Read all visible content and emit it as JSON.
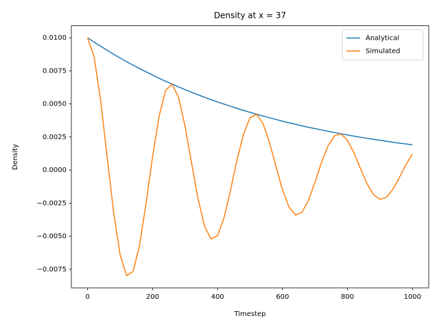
{
  "chart_data": {
    "type": "line",
    "title": "Density at x = 37",
    "x_label": "Timestep",
    "y_label": "Density",
    "x": [
      0,
      20,
      40,
      60,
      80,
      100,
      120,
      140,
      160,
      180,
      200,
      220,
      240,
      260,
      280,
      300,
      320,
      340,
      360,
      380,
      400,
      420,
      440,
      460,
      480,
      500,
      520,
      540,
      560,
      580,
      600,
      620,
      640,
      660,
      680,
      700,
      720,
      740,
      760,
      780,
      800,
      820,
      840,
      860,
      880,
      900,
      920,
      940,
      960,
      980,
      1000
    ],
    "series": [
      {
        "name": "Analytical",
        "color": "#1f77b4",
        "values": [
          0.01,
          0.00967,
          0.00936,
          0.00905,
          0.00876,
          0.00847,
          0.00819,
          0.00793,
          0.00767,
          0.00742,
          0.00718,
          0.00694,
          0.00671,
          0.0065,
          0.00628,
          0.00608,
          0.00588,
          0.00569,
          0.0055,
          0.00532,
          0.00515,
          0.00498,
          0.00482,
          0.00466,
          0.00451,
          0.00436,
          0.00422,
          0.00408,
          0.00395,
          0.00382,
          0.00369,
          0.00357,
          0.00346,
          0.00334,
          0.00323,
          0.00313,
          0.00303,
          0.00293,
          0.00283,
          0.00274,
          0.00265,
          0.00256,
          0.00248,
          0.0024,
          0.00232,
          0.00225,
          0.00217,
          0.0021,
          0.00203,
          0.00197,
          0.0019
        ]
      },
      {
        "name": "Simulated",
        "color": "#ff7f0e",
        "values": [
          0.01,
          0.00856,
          0.00529,
          0.00104,
          -0.00316,
          -0.00639,
          -0.00798,
          -0.00768,
          -0.00568,
          -0.00252,
          0.001,
          0.00406,
          0.00601,
          0.00649,
          0.00549,
          0.00331,
          0.00053,
          -0.00218,
          -0.00424,
          -0.00521,
          -0.00496,
          -0.00361,
          -0.00153,
          0.00076,
          0.00272,
          0.00395,
          0.00421,
          0.00351,
          0.00207,
          0.00026,
          -0.0015,
          -0.00281,
          -0.0034,
          -0.0032,
          -0.00229,
          -0.00092,
          0.00057,
          0.00183,
          0.00259,
          0.00273,
          0.00225,
          0.00129,
          0.00011,
          -0.00103,
          -0.00186,
          -0.00222,
          -0.00206,
          -0.00145,
          -0.00055,
          0.00041,
          0.00122
        ]
      }
    ],
    "xlim": [
      -50,
      1050
    ],
    "ylim": [
      -0.00891,
      0.01091
    ],
    "xticks": [
      0,
      200,
      400,
      600,
      800,
      1000
    ],
    "yticks": [
      {
        "value": -0.0075,
        "label": "−0.0075"
      },
      {
        "value": -0.005,
        "label": "−0.0050"
      },
      {
        "value": -0.0025,
        "label": "−0.0025"
      },
      {
        "value": 0,
        "label": "0.0000"
      },
      {
        "value": 0.0025,
        "label": "0.0025"
      },
      {
        "value": 0.005,
        "label": "0.0050"
      },
      {
        "value": 0.0075,
        "label": "0.0075"
      },
      {
        "value": 0.01,
        "label": "0.0100"
      }
    ],
    "legend": "upper right",
    "grid": false
  }
}
